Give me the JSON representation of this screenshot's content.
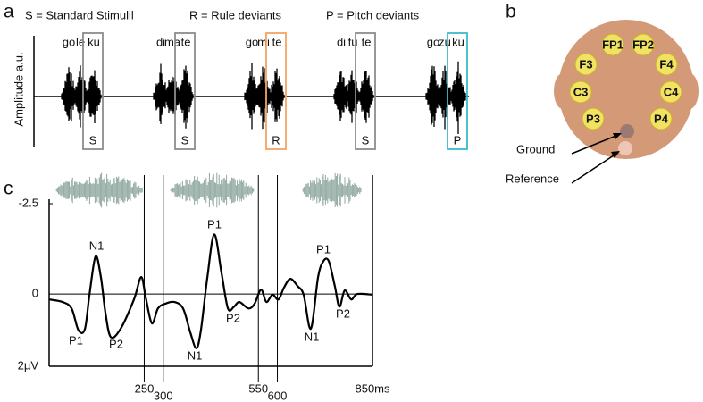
{
  "panel_a": {
    "label": "a",
    "legend": [
      {
        "text": "S = Standard Stimulil",
        "color": "#111111"
      },
      {
        "text": "R = Rule deviants",
        "color": "#f5a462"
      },
      {
        "text": "P = Pitch deviants",
        "color": "#3bbcc6"
      }
    ],
    "y_label": "Amplitude a.u.",
    "words": [
      {
        "syllables": [
          "go",
          "le",
          "ku"
        ],
        "mark": "S",
        "color": "#8c8c8c"
      },
      {
        "syllables": [
          "di",
          "ma",
          "te"
        ],
        "mark": "S",
        "color": "#8c8c8c"
      },
      {
        "syllables": [
          "go",
          "mi",
          "te"
        ],
        "mark": "R",
        "color": "#f5a462"
      },
      {
        "syllables": [
          "di",
          "fu",
          "te"
        ],
        "mark": "S",
        "color": "#8c8c8c"
      },
      {
        "syllables": [
          "go",
          "zu",
          "ku"
        ],
        "mark": "P",
        "color": "#3bbcc6"
      }
    ]
  },
  "panel_b": {
    "label": "b",
    "electrodes": [
      "FP1",
      "FP2",
      "F3",
      "F4",
      "C3",
      "C4",
      "P3",
      "P4"
    ],
    "ground": "Ground",
    "reference": "Reference"
  },
  "chart_data": {
    "type": "line",
    "label": "c",
    "x": [
      0,
      35,
      59,
      77,
      94,
      106,
      122,
      136,
      148,
      162,
      188,
      223,
      242,
      254,
      270,
      286,
      305,
      329,
      352,
      371,
      387,
      399,
      416,
      434,
      453,
      470,
      486,
      500,
      524,
      540,
      557,
      571,
      587,
      603,
      617,
      634,
      653,
      669,
      688,
      707,
      721,
      735,
      751,
      763,
      777,
      794,
      810,
      850
    ],
    "values": [
      0.15,
      0.22,
      0.4,
      1.0,
      0.97,
      0.02,
      -1.04,
      -0.47,
      0.52,
      1.19,
      0.96,
      0.15,
      -0.47,
      0.1,
      0.81,
      0.4,
      0.27,
      0.22,
      0.4,
      1.06,
      1.5,
      1.0,
      -0.47,
      -1.65,
      -0.59,
      0.4,
      0.35,
      0.22,
      0.4,
      0.27,
      -0.12,
      0.22,
      0.02,
      0.15,
      -0.17,
      -0.42,
      -0.22,
      0.02,
      0.96,
      -0.47,
      -0.91,
      -0.91,
      -0.22,
      0.35,
      -0.1,
      0.15,
      0,
      0.02
    ],
    "color": "#000000",
    "xlim": [
      0,
      850
    ],
    "ylim": [
      2,
      -2.5
    ],
    "xticks": [
      250,
      300,
      550,
      600,
      {
        "value": 850,
        "label": "850ms"
      }
    ],
    "yticks": [
      -2.5,
      0,
      {
        "value": 2,
        "label": "2µV"
      }
    ],
    "annotations": [
      "P1",
      "N1",
      "P2",
      "N1",
      "P1",
      "P2",
      "N1",
      "P1",
      "P2"
    ]
  }
}
